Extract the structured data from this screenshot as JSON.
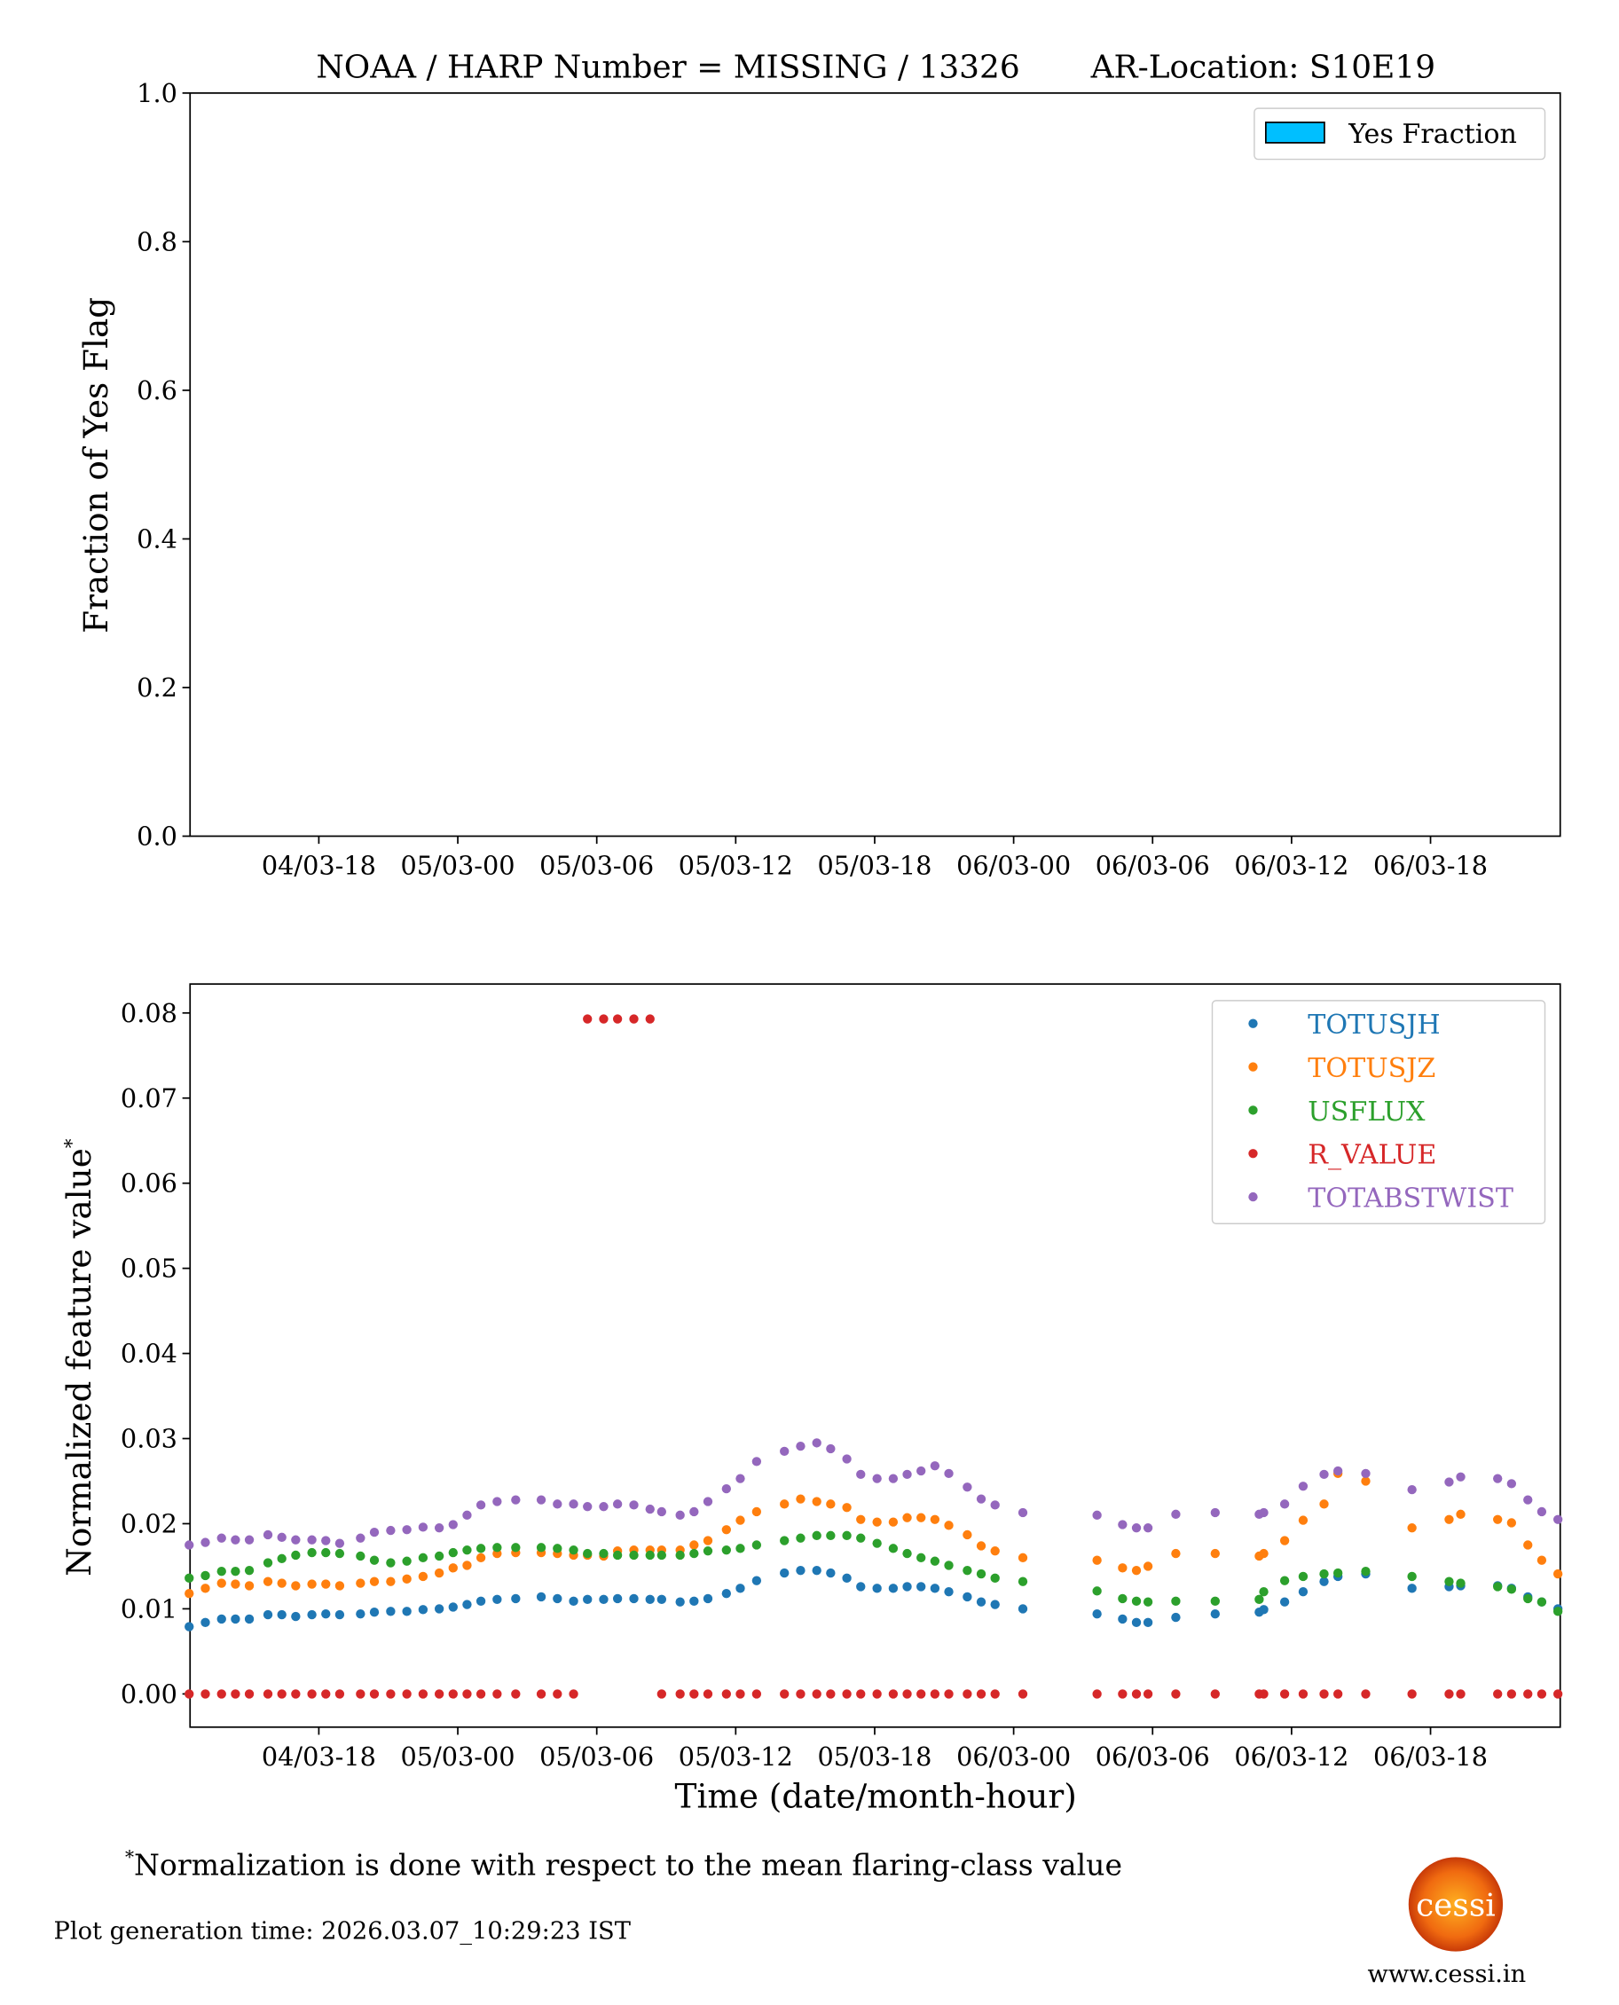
{
  "title": "NOAA / HARP Number = MISSING / 13326       AR-Location: S10E19",
  "footnote_mark": "*",
  "footnote": "Normalization is done with respect to the mean flaring-class value",
  "generation_time": "Plot generation time: 2026.03.07_10:29:23 IST",
  "logo_text": "cessi",
  "website": "www.cessi.in",
  "chart_data": [
    {
      "type": "bar",
      "ylabel": "Fraction of Yes Flag",
      "ylim": [
        0,
        1
      ],
      "yticks": [
        "0.0",
        "0.2",
        "0.4",
        "0.6",
        "0.8",
        "1.0"
      ],
      "ytick_values": [
        0,
        0.2,
        0.4,
        0.6,
        0.8,
        1.0
      ],
      "xlim_hours": [
        12.44,
        71.6
      ],
      "xticks": [
        "04/03-18",
        "05/03-00",
        "05/03-06",
        "05/03-12",
        "05/03-18",
        "06/03-00",
        "06/03-06",
        "06/03-12",
        "06/03-18"
      ],
      "xtick_hours": [
        18,
        24,
        30,
        36,
        42,
        48,
        54,
        60,
        66
      ],
      "legend": [
        {
          "name": "Yes Fraction",
          "color": "#00bfff"
        }
      ],
      "legend_position": "top-right",
      "values": []
    },
    {
      "type": "scatter",
      "xlabel": "Time (date/month-hour)",
      "ylabel": "Normalized feature value",
      "ylabel_sup": "*",
      "ylim": [
        -0.0039,
        0.0834
      ],
      "yticks": [
        "0.00",
        "0.01",
        "0.02",
        "0.03",
        "0.04",
        "0.05",
        "0.06",
        "0.07",
        "0.08"
      ],
      "ytick_values": [
        0,
        0.01,
        0.02,
        0.03,
        0.04,
        0.05,
        0.06,
        0.07,
        0.08
      ],
      "xlim_hours": [
        12.44,
        71.6
      ],
      "x_unit": "hours since 04/03-00",
      "xticks": [
        "04/03-18",
        "05/03-00",
        "05/03-06",
        "05/03-12",
        "05/03-18",
        "06/03-00",
        "06/03-06",
        "06/03-12",
        "06/03-18"
      ],
      "xtick_hours": [
        18,
        24,
        30,
        36,
        42,
        48,
        54,
        60,
        66
      ],
      "legend_position": "top-right",
      "x": [
        12.4,
        13.1,
        13.8,
        14.4,
        15.0,
        15.8,
        16.4,
        17.0,
        17.7,
        18.3,
        18.9,
        19.8,
        20.4,
        21.1,
        21.8,
        22.5,
        23.2,
        23.8,
        24.4,
        25.0,
        25.7,
        26.5,
        27.6,
        28.3,
        29.0,
        29.6,
        30.3,
        30.9,
        31.6,
        32.3,
        32.8,
        33.6,
        34.2,
        34.8,
        35.6,
        36.2,
        36.9,
        38.1,
        38.8,
        39.5,
        40.1,
        40.8,
        41.4,
        42.1,
        42.8,
        43.4,
        44.0,
        44.6,
        45.2,
        46.0,
        46.6,
        47.2,
        48.4,
        51.6,
        52.7,
        53.3,
        53.8,
        55.0,
        56.7,
        58.6,
        58.8,
        59.7,
        60.5,
        61.4,
        62.0,
        63.2,
        65.2,
        66.8,
        67.3,
        68.9,
        69.5,
        70.2,
        70.8,
        71.5
      ],
      "series": [
        {
          "name": "TOTUSJH",
          "color": "#1f77b4",
          "values": [
            0.0079,
            0.0084,
            0.0088,
            0.0088,
            0.0088,
            0.0093,
            0.0093,
            0.0091,
            0.0093,
            0.0094,
            0.0093,
            0.0094,
            0.0096,
            0.0097,
            0.0097,
            0.0099,
            0.01,
            0.0102,
            0.0105,
            0.0109,
            0.0111,
            0.0112,
            0.0114,
            0.0112,
            0.0109,
            0.0111,
            0.0111,
            0.0112,
            0.0112,
            0.0111,
            0.0111,
            0.0108,
            0.0109,
            0.0112,
            0.0118,
            0.0124,
            0.0133,
            0.0142,
            0.0145,
            0.0145,
            0.0142,
            0.0136,
            0.0126,
            0.0124,
            0.0124,
            0.0126,
            0.0126,
            0.0124,
            0.012,
            0.0114,
            0.0108,
            0.0105,
            0.01,
            0.0094,
            0.0088,
            0.0084,
            0.0084,
            0.009,
            0.0094,
            0.0096,
            0.0099,
            0.0108,
            0.012,
            0.0132,
            0.0138,
            0.0141,
            0.0124,
            0.0126,
            0.0127,
            0.0127,
            0.0124,
            0.0114,
            0.0108,
            0.01
          ]
        },
        {
          "name": "TOTUSJZ",
          "color": "#ff7f0e",
          "values": [
            0.0118,
            0.0124,
            0.013,
            0.0129,
            0.0127,
            0.0132,
            0.013,
            0.0127,
            0.0129,
            0.0129,
            0.0127,
            0.013,
            0.0132,
            0.0132,
            0.0135,
            0.0138,
            0.0142,
            0.0148,
            0.0151,
            0.016,
            0.0165,
            0.0166,
            0.0166,
            0.0165,
            0.0163,
            0.0163,
            0.0162,
            0.0168,
            0.0169,
            0.0169,
            0.0169,
            0.0169,
            0.0175,
            0.018,
            0.0193,
            0.0204,
            0.0214,
            0.0223,
            0.0229,
            0.0226,
            0.0223,
            0.0219,
            0.0205,
            0.0202,
            0.0202,
            0.0207,
            0.0207,
            0.0205,
            0.0198,
            0.0187,
            0.0174,
            0.0168,
            0.016,
            0.0157,
            0.0148,
            0.0145,
            0.015,
            0.0165,
            0.0165,
            0.0162,
            0.0165,
            0.018,
            0.0204,
            0.0223,
            0.0259,
            0.025,
            0.0195,
            0.0205,
            0.0211,
            0.0205,
            0.0201,
            0.0175,
            0.0157,
            0.0141
          ]
        },
        {
          "name": "USFLUX",
          "color": "#2ca02c",
          "values": [
            0.0136,
            0.0139,
            0.0144,
            0.0144,
            0.0145,
            0.0154,
            0.0159,
            0.0163,
            0.0166,
            0.0166,
            0.0165,
            0.0162,
            0.0157,
            0.0154,
            0.0156,
            0.016,
            0.0162,
            0.0166,
            0.0169,
            0.0171,
            0.0172,
            0.0172,
            0.0172,
            0.0171,
            0.0169,
            0.0165,
            0.0165,
            0.0163,
            0.0163,
            0.0163,
            0.0163,
            0.0163,
            0.0165,
            0.0168,
            0.0169,
            0.0171,
            0.0175,
            0.018,
            0.0183,
            0.0186,
            0.0186,
            0.0186,
            0.0183,
            0.0177,
            0.0171,
            0.0165,
            0.016,
            0.0156,
            0.0151,
            0.0145,
            0.0141,
            0.0136,
            0.0132,
            0.0121,
            0.0112,
            0.0109,
            0.0108,
            0.0109,
            0.0109,
            0.0111,
            0.012,
            0.0133,
            0.0138,
            0.0141,
            0.0142,
            0.0144,
            0.0138,
            0.0132,
            0.013,
            0.0126,
            0.0123,
            0.0112,
            0.0108,
            0.0097
          ]
        },
        {
          "name": "R_VALUE",
          "color": "#d62728",
          "values": [
            0,
            0,
            0,
            0,
            0,
            0,
            0,
            0,
            0,
            0,
            0,
            0,
            0,
            0,
            0,
            0,
            0,
            0,
            0,
            0,
            0,
            0,
            0,
            0,
            0,
            0.0793,
            0.0793,
            0.0793,
            0.0793,
            0.0793,
            0,
            0,
            0,
            0,
            0,
            0,
            0,
            0,
            0,
            0,
            0,
            0,
            0,
            0,
            0,
            0,
            0,
            0,
            0,
            0,
            0,
            0,
            0,
            0,
            0,
            0,
            0,
            0,
            0,
            0,
            0,
            0,
            0,
            0,
            0,
            0,
            0,
            0,
            0,
            0,
            0,
            0,
            0,
            0
          ]
        },
        {
          "name": "TOTABSTWIST",
          "color": "#9467bd",
          "values": [
            0.0175,
            0.0178,
            0.0183,
            0.0181,
            0.0181,
            0.0187,
            0.0184,
            0.0181,
            0.0181,
            0.018,
            0.0177,
            0.0183,
            0.019,
            0.0192,
            0.0193,
            0.0196,
            0.0195,
            0.0199,
            0.021,
            0.0222,
            0.0226,
            0.0228,
            0.0228,
            0.0223,
            0.0223,
            0.022,
            0.022,
            0.0223,
            0.0222,
            0.0217,
            0.0214,
            0.021,
            0.0214,
            0.0226,
            0.0241,
            0.0253,
            0.0273,
            0.0285,
            0.0291,
            0.0295,
            0.0288,
            0.0276,
            0.0258,
            0.0253,
            0.0253,
            0.0258,
            0.0262,
            0.0268,
            0.0259,
            0.0243,
            0.0229,
            0.0222,
            0.0213,
            0.021,
            0.0199,
            0.0195,
            0.0195,
            0.0211,
            0.0213,
            0.0211,
            0.0213,
            0.0223,
            0.0244,
            0.0258,
            0.0262,
            0.0259,
            0.024,
            0.0249,
            0.0255,
            0.0253,
            0.0247,
            0.0228,
            0.0214,
            0.0205
          ]
        }
      ]
    }
  ]
}
